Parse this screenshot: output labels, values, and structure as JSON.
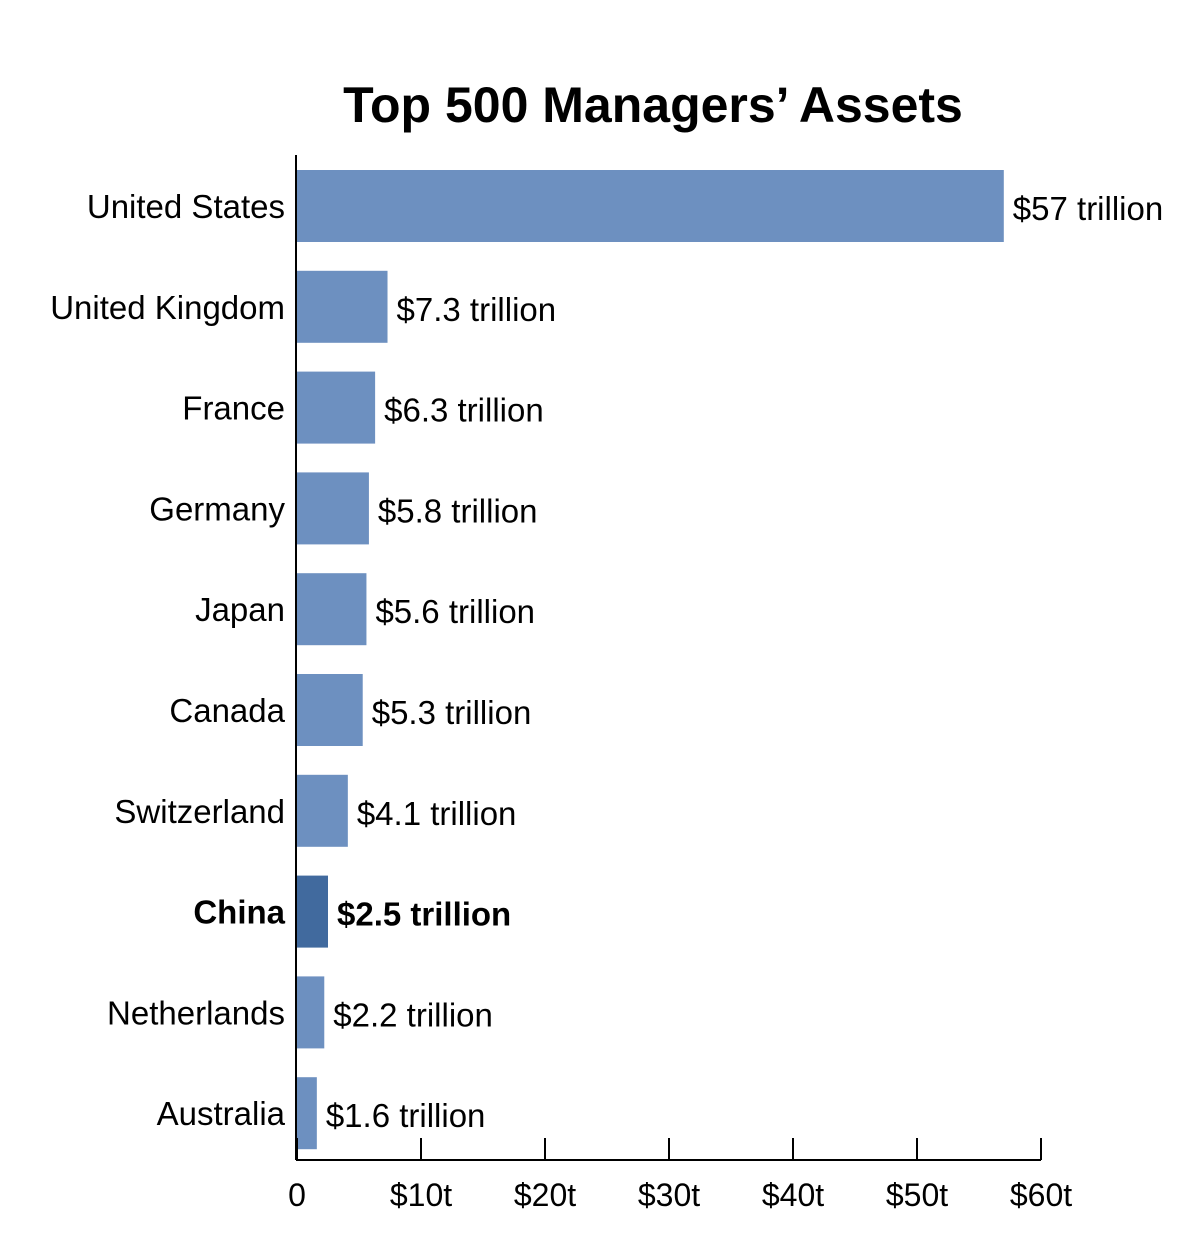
{
  "chart_data": {
    "type": "bar",
    "orientation": "horizontal",
    "title": "Top 500 Managers’ Assets",
    "xlabel": "",
    "ylabel": "",
    "xlim": [
      0,
      60
    ],
    "x_ticks": [
      0,
      10,
      20,
      30,
      40,
      50,
      60
    ],
    "x_tick_labels": [
      "0",
      "$10t",
      "$20t",
      "$30t",
      "$40t",
      "$50t",
      "$60t"
    ],
    "categories": [
      "United States",
      "United Kingdom",
      "France",
      "Germany",
      "Japan",
      "Canada",
      "Switzerland",
      "China",
      "Netherlands",
      "Australia"
    ],
    "values": [
      57,
      7.3,
      6.3,
      5.8,
      5.6,
      5.3,
      4.1,
      2.5,
      2.2,
      1.6
    ],
    "value_labels": [
      "$57 trillion",
      "$7.3 trillion",
      "$6.3 trillion",
      "$5.8 trillion",
      "$5.6 trillion",
      "$5.3 trillion",
      "$4.1 trillion",
      "$2.5 trillion",
      "$2.2 trillion",
      "$1.6 trillion"
    ],
    "highlight": "China",
    "colors": {
      "bar": "#6d90c0",
      "highlight": "#416a9e",
      "axis": "#000000"
    },
    "grid": false,
    "legend": "none"
  }
}
